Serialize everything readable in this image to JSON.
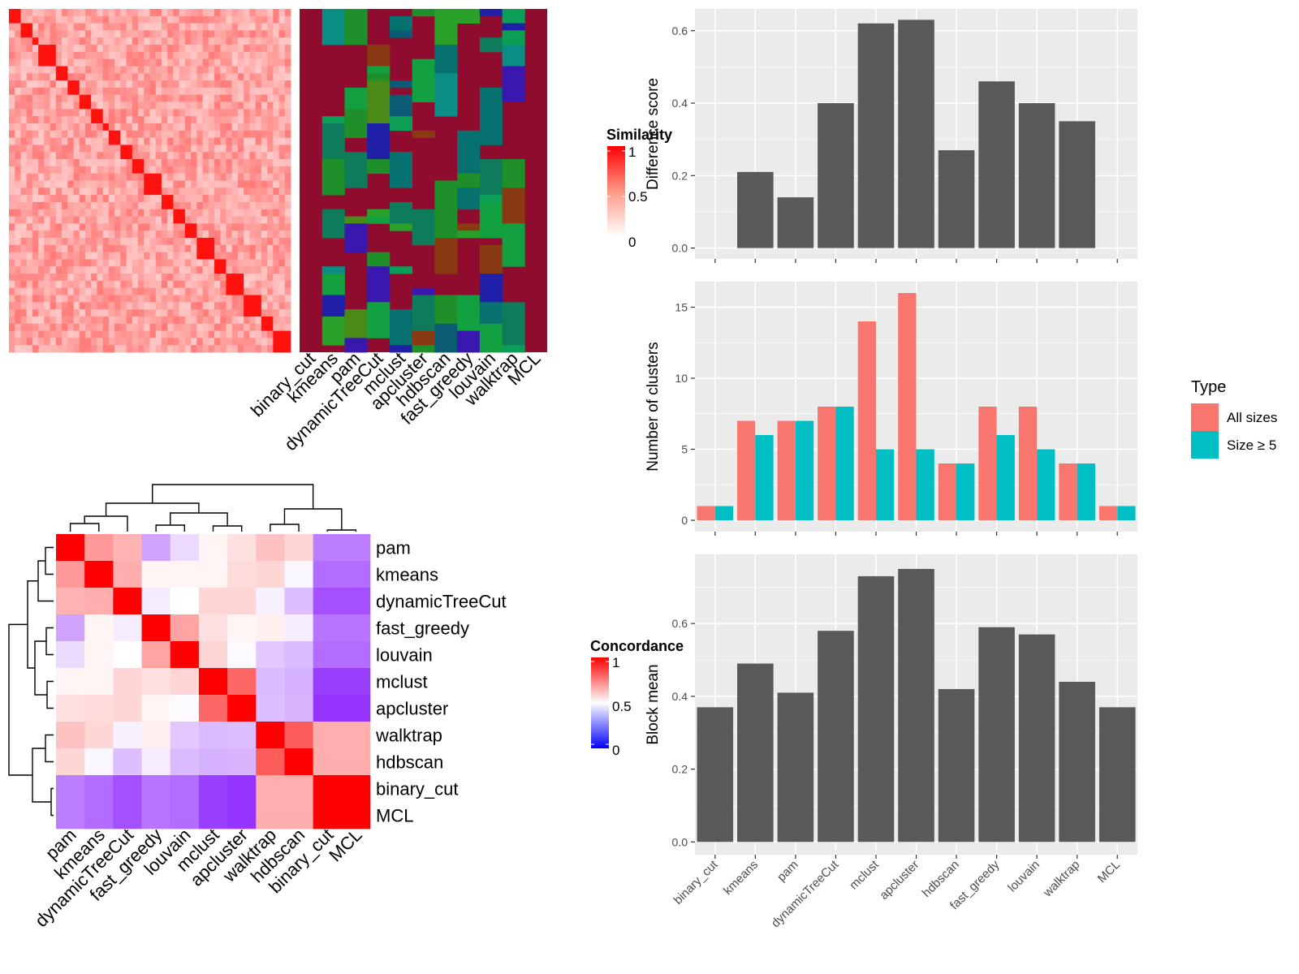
{
  "similarity_panel": {
    "legend_title": "Similarity",
    "legend_ticks": [
      "1",
      "0.5",
      "0"
    ],
    "method_labels": [
      "binary_cut",
      "kmeans",
      "pam",
      "dynamicTreeCut",
      "mclust",
      "apcluster",
      "hdbscan",
      "fast_greedy",
      "louvain",
      "walktrap",
      "MCL"
    ]
  },
  "concordance_panel": {
    "legend_title": "Concordance",
    "legend_ticks": [
      "1",
      "0.5",
      "0"
    ],
    "order": [
      "pam",
      "kmeans",
      "dynamicTreeCut",
      "fast_greedy",
      "louvain",
      "mclust",
      "apcluster",
      "walktrap",
      "hdbscan",
      "binary_cut",
      "MCL"
    ],
    "matrix": [
      [
        1.0,
        0.7,
        0.65,
        0.3,
        0.42,
        0.52,
        0.56,
        0.62,
        0.58,
        0.22,
        0.22
      ],
      [
        0.7,
        1.0,
        0.66,
        0.52,
        0.52,
        0.52,
        0.57,
        0.58,
        0.48,
        0.18,
        0.18
      ],
      [
        0.65,
        0.66,
        1.0,
        0.46,
        0.5,
        0.58,
        0.58,
        0.47,
        0.36,
        0.12,
        0.12
      ],
      [
        0.3,
        0.52,
        0.46,
        1.0,
        0.68,
        0.56,
        0.52,
        0.53,
        0.46,
        0.2,
        0.2
      ],
      [
        0.42,
        0.52,
        0.5,
        0.68,
        1.0,
        0.58,
        0.49,
        0.38,
        0.35,
        0.18,
        0.18
      ],
      [
        0.52,
        0.52,
        0.58,
        0.56,
        0.58,
        1.0,
        0.8,
        0.35,
        0.33,
        0.08,
        0.08
      ],
      [
        0.56,
        0.57,
        0.58,
        0.52,
        0.49,
        0.8,
        1.0,
        0.36,
        0.34,
        0.06,
        0.06
      ],
      [
        0.62,
        0.58,
        0.47,
        0.53,
        0.38,
        0.35,
        0.36,
        1.0,
        0.82,
        0.66,
        0.66
      ],
      [
        0.58,
        0.48,
        0.36,
        0.46,
        0.35,
        0.33,
        0.34,
        0.82,
        1.0,
        0.66,
        0.66
      ],
      [
        0.22,
        0.18,
        0.12,
        0.2,
        0.18,
        0.08,
        0.06,
        0.66,
        0.66,
        1.0,
        1.0
      ],
      [
        0.22,
        0.18,
        0.12,
        0.2,
        0.18,
        0.08,
        0.06,
        0.66,
        0.66,
        1.0,
        1.0
      ]
    ]
  },
  "chart_data": [
    {
      "type": "bar",
      "ylabel": "Difference score",
      "categories": [
        "binary_cut",
        "kmeans",
        "pam",
        "dynamicTreeCut",
        "mclust",
        "apcluster",
        "hdbscan",
        "fast_greedy",
        "louvain",
        "walktrap",
        "MCL"
      ],
      "values": [
        0.0,
        0.21,
        0.14,
        0.4,
        0.62,
        0.63,
        0.27,
        0.46,
        0.4,
        0.35,
        0.0
      ],
      "yticks": [
        "0.0",
        "0.2",
        "0.4",
        "0.6"
      ],
      "ylim": [
        -0.03,
        0.66
      ]
    },
    {
      "type": "bar",
      "ylabel": "Number of clusters",
      "categories": [
        "binary_cut",
        "kmeans",
        "pam",
        "dynamicTreeCut",
        "mclust",
        "apcluster",
        "hdbscan",
        "fast_greedy",
        "louvain",
        "walktrap",
        "MCL"
      ],
      "series": [
        {
          "name": "All sizes",
          "color": "#F8766D",
          "values": [
            1,
            7,
            7,
            8,
            14,
            16,
            4,
            8,
            8,
            4,
            1
          ]
        },
        {
          "name": "Size ≥ 5",
          "color": "#00BFC4",
          "values": [
            1,
            6,
            7,
            8,
            5,
            5,
            4,
            6,
            5,
            4,
            1
          ]
        }
      ],
      "yticks": [
        "0",
        "5",
        "10",
        "15"
      ],
      "ylim": [
        -0.8,
        16.8
      ],
      "legend_title": "Type",
      "legend_position": "right"
    },
    {
      "type": "bar",
      "ylabel": "Block mean",
      "categories": [
        "binary_cut",
        "kmeans",
        "pam",
        "dynamicTreeCut",
        "mclust",
        "apcluster",
        "hdbscan",
        "fast_greedy",
        "louvain",
        "walktrap",
        "MCL"
      ],
      "values": [
        0.37,
        0.49,
        0.41,
        0.58,
        0.73,
        0.75,
        0.42,
        0.59,
        0.57,
        0.44,
        0.37
      ],
      "yticks": [
        "0.0",
        "0.2",
        "0.4",
        "0.6"
      ],
      "ylim": [
        -0.035,
        0.79
      ]
    }
  ]
}
